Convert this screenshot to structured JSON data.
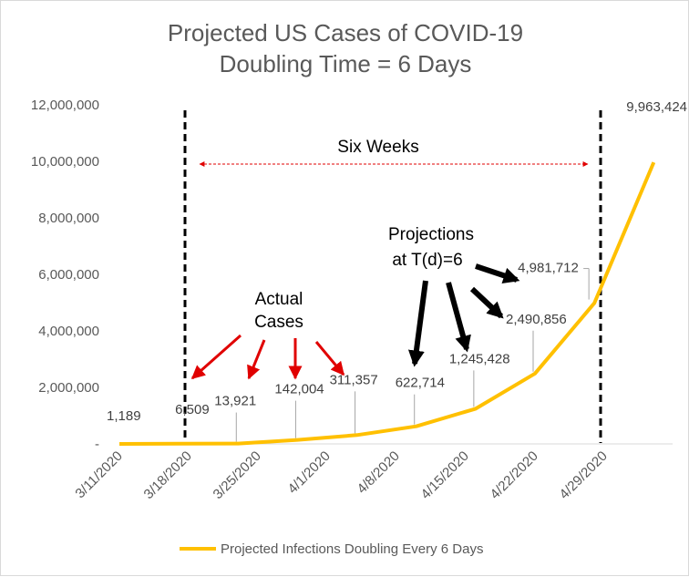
{
  "chart_data": {
    "type": "line",
    "title": "Projected US Cases of COVID-19",
    "subtitle": "Doubling Time = 6 Days",
    "xlabel": "",
    "ylabel": "",
    "ylim": [
      0,
      12000000
    ],
    "y_ticks": [
      "-",
      "2,000,000",
      "4,000,000",
      "6,000,000",
      "8,000,000",
      "10,000,000",
      "12,000,000"
    ],
    "x_ticks": [
      "3/11/2020",
      "3/18/2020",
      "3/25/2020",
      "4/1/2020",
      "4/8/2020",
      "4/15/2020",
      "4/22/2020",
      "4/29/2020"
    ],
    "grid": false,
    "legend_position": "bottom",
    "series": [
      {
        "name": "Projected Infections Doubling Every 6 Days",
        "color": "#FFC000",
        "x": [
          "3/11/2020",
          "3/17/2020",
          "3/23/2020",
          "3/29/2020",
          "4/4/2020",
          "4/10/2020",
          "4/16/2020",
          "4/22/2020",
          "4/28/2020",
          "5/4/2020"
        ],
        "values": [
          1189,
          6509,
          13921,
          142004,
          311357,
          622714,
          1245428,
          2490856,
          4981712,
          9963424
        ],
        "data_labels": [
          "1,189",
          "6,509",
          "13,921",
          "142,004",
          "311,357",
          "622,714",
          "1,245,428",
          "2,490,856",
          "4,981,712",
          "9,963,424"
        ]
      }
    ],
    "annotations": {
      "span_label": "Six Weeks",
      "actual_cases": [
        "Actual",
        "Cases"
      ],
      "projections": [
        "Projections",
        "at T(d)=6"
      ],
      "span_start": "3/18/2020",
      "span_end": "4/29/2020"
    }
  }
}
